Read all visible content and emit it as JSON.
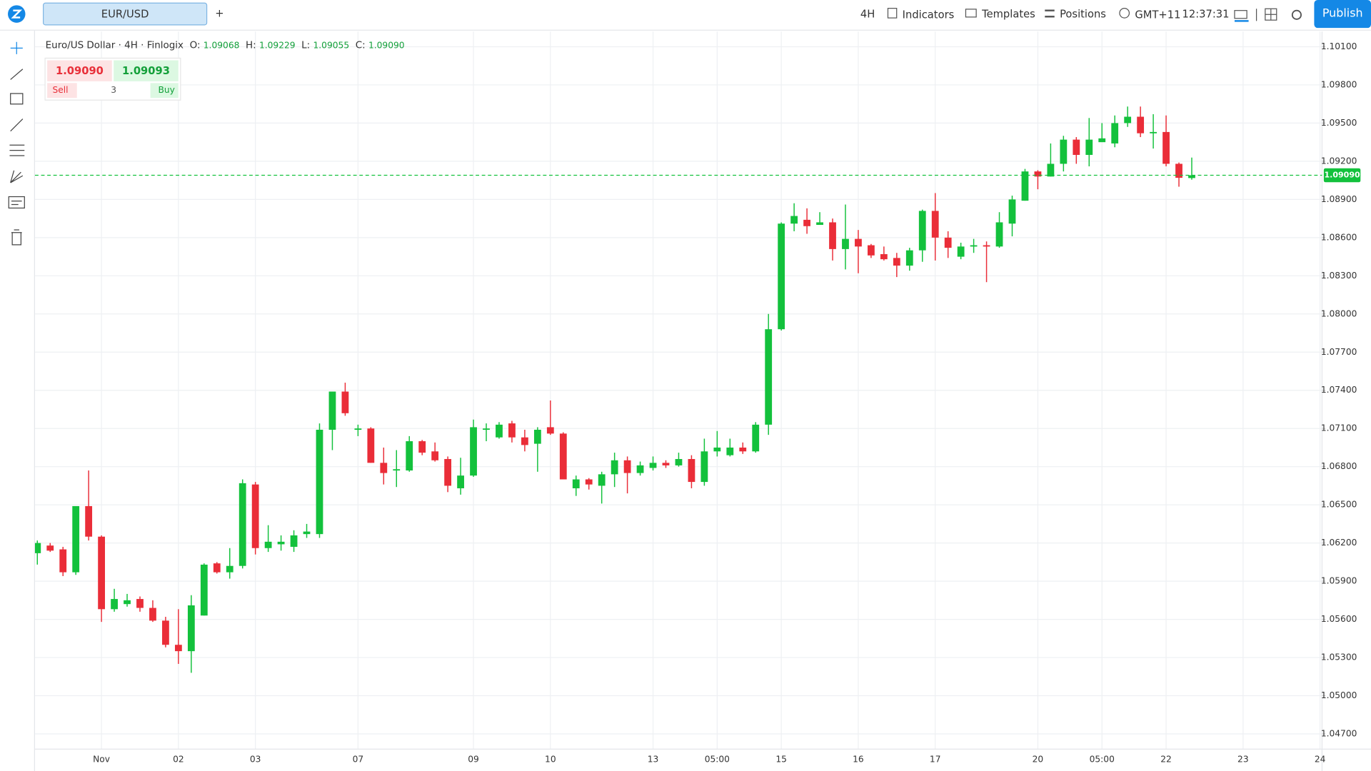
{
  "ui": {
    "symbol_tab": "EUR/USD",
    "add_tab": "+",
    "toolbar": {
      "interval": "4H",
      "indicators": "Indicators",
      "templates": "Templates",
      "positions": "Positions",
      "timezone": "GMT+11",
      "clock": "12:37:31",
      "publish": "Publish"
    },
    "legend": {
      "name": "Euro/US Dollar · 4H · Finlogix",
      "o_key": "O:",
      "o": "1.09068",
      "h_key": "H:",
      "h": "1.09229",
      "l_key": "L:",
      "l": "1.09055",
      "c_key": "C:",
      "c": "1.09090"
    },
    "trade": {
      "sell_price": "1.09090",
      "buy_price": "1.09093",
      "sell": "Sell",
      "qty": "3",
      "buy": "Buy"
    }
  },
  "chart_data": {
    "type": "candlestick",
    "up_color": "#13c13c",
    "down_color": "#ea2d38",
    "grid": true,
    "categories": [
      null,
      null,
      null,
      null,
      null,
      "Nov",
      null,
      null,
      null,
      null,
      null,
      "02",
      null,
      null,
      null,
      null,
      null,
      "03",
      null,
      null,
      null,
      null,
      null,
      null,
      null,
      "07",
      null,
      null,
      null,
      null,
      null,
      null,
      null,
      null,
      "09",
      null,
      null,
      null,
      null,
      null,
      "10",
      null,
      null,
      null,
      null,
      null,
      null,
      null,
      "13",
      null,
      null,
      null,
      null,
      "05:00",
      null,
      null,
      null,
      null,
      "15",
      null,
      null,
      null,
      null,
      null,
      "16",
      null,
      null,
      null,
      null,
      null,
      "17",
      null,
      null,
      null,
      null,
      null,
      null,
      null,
      "20",
      null,
      null,
      null,
      null,
      "05:00",
      null,
      null,
      null,
      null,
      "22",
      null,
      null,
      null,
      null,
      null,
      "23",
      null,
      null,
      null,
      null,
      null,
      "24"
    ],
    "open": [
      1.0612,
      1.0618,
      1.0615,
      1.0597,
      1.0649,
      1.0625,
      1.0568,
      1.0572,
      1.0576,
      1.0569,
      1.0559,
      1.054,
      1.0535,
      1.0563,
      1.0604,
      1.0597,
      1.0602,
      1.0666,
      1.0616,
      1.0619,
      1.0617,
      1.0627,
      1.0627,
      1.0709,
      1.0739,
      1.0709,
      1.071,
      1.0683,
      1.0677,
      1.0677,
      1.07,
      1.0692,
      1.0686,
      1.0663,
      1.0673,
      1.0709,
      1.0703,
      1.0714,
      1.0703,
      1.0698,
      1.0711,
      1.0706,
      1.0663,
      1.067,
      1.0665,
      1.0674,
      1.0685,
      1.0675,
      1.0679,
      1.0683,
      1.0681,
      1.0686,
      1.0668,
      1.0692,
      1.0689,
      1.0695,
      1.0692,
      1.0713,
      1.0788,
      1.0871,
      1.0874,
      1.087,
      1.0872,
      1.0851,
      1.0859,
      1.0854,
      1.0847,
      1.0844,
      1.0838,
      1.085,
      1.0881,
      1.086,
      1.0845,
      1.0853,
      1.0854,
      1.0853,
      1.0871,
      1.0889,
      1.0912,
      1.0908,
      1.0918,
      1.0937,
      1.0925,
      1.0935,
      1.0934,
      1.095,
      1.0955,
      1.0942,
      1.0943,
      1.0918,
      1.09068,
      null,
      null,
      null,
      null,
      null,
      null,
      null,
      null,
      null,
      null
    ],
    "high": [
      1.0622,
      1.062,
      1.0617,
      1.0649,
      1.0677,
      1.0626,
      1.0584,
      1.058,
      1.0578,
      1.0575,
      1.0562,
      1.0568,
      1.0579,
      1.0604,
      1.0605,
      1.0616,
      1.067,
      1.0668,
      1.0634,
      1.0626,
      1.063,
      1.0635,
      1.0714,
      1.0739,
      1.0746,
      1.0713,
      1.0711,
      1.0695,
      1.0693,
      1.0704,
      1.0701,
      1.0699,
      1.0688,
      1.0687,
      1.0717,
      1.0714,
      1.0715,
      1.0716,
      1.0709,
      1.0711,
      1.0732,
      1.0707,
      1.0673,
      1.0671,
      1.0676,
      1.0691,
      1.0688,
      1.0684,
      1.0688,
      1.0685,
      1.0691,
      1.0689,
      1.0702,
      1.0708,
      1.0702,
      1.0699,
      1.0715,
      1.08,
      1.0872,
      1.0887,
      1.0883,
      1.088,
      1.0875,
      1.0886,
      1.0866,
      1.0855,
      1.0853,
      1.0848,
      1.0852,
      1.0882,
      1.0895,
      1.0865,
      1.0856,
      1.0859,
      1.0857,
      1.088,
      1.0893,
      1.0914,
      1.0913,
      1.0934,
      1.094,
      1.0939,
      1.0954,
      1.095,
      1.0956,
      1.0963,
      1.0963,
      1.0957,
      1.0956,
      1.0919,
      1.09229,
      null,
      null,
      null,
      null,
      null,
      null,
      null,
      null,
      null,
      null
    ],
    "low": [
      1.0603,
      1.0613,
      1.0594,
      1.0595,
      1.0622,
      1.0558,
      1.0566,
      1.057,
      1.0566,
      1.0558,
      1.0538,
      1.0525,
      1.0518,
      1.0563,
      1.0596,
      1.0592,
      1.06,
      1.0611,
      1.0613,
      1.0614,
      1.0613,
      1.0624,
      1.0624,
      1.0693,
      1.072,
      1.0704,
      1.0683,
      1.0666,
      1.0664,
      1.0676,
      1.0689,
      1.0684,
      1.066,
      1.0658,
      1.0672,
      1.07,
      1.0702,
      1.0699,
      1.0692,
      1.0676,
      1.0705,
      1.067,
      1.0657,
      1.0662,
      1.0651,
      1.0664,
      1.0659,
      1.0673,
      1.0677,
      1.0679,
      1.068,
      1.0663,
      1.0665,
      1.0688,
      1.0688,
      1.069,
      1.0691,
      1.0705,
      1.0787,
      1.0865,
      1.0863,
      1.087,
      1.0842,
      1.0835,
      1.0832,
      1.0844,
      1.0842,
      1.0829,
      1.0834,
      1.0841,
      1.0842,
      1.0844,
      1.0843,
      1.0848,
      1.0825,
      1.0852,
      1.0861,
      1.0889,
      1.0898,
      1.0908,
      1.0912,
      1.0918,
      1.0916,
      1.0936,
      1.0931,
      1.0947,
      1.0939,
      1.093,
      1.0916,
      1.09,
      1.09055,
      null,
      null,
      null,
      null,
      null,
      null,
      null,
      null,
      null,
      null
    ],
    "close": [
      1.062,
      1.0614,
      1.0597,
      1.0649,
      1.0625,
      1.0568,
      1.0576,
      1.0575,
      1.0569,
      1.0559,
      1.054,
      1.0535,
      1.0571,
      1.0603,
      1.0597,
      1.0602,
      1.0667,
      1.0616,
      1.0621,
      1.0621,
      1.0626,
      1.0629,
      1.0709,
      1.0739,
      1.0722,
      1.071,
      1.0683,
      1.0675,
      1.0678,
      1.07,
      1.0691,
      1.0685,
      1.0665,
      1.0673,
      1.0711,
      1.071,
      1.0713,
      1.0703,
      1.0697,
      1.0709,
      1.0706,
      1.067,
      1.067,
      1.0666,
      1.0674,
      1.0685,
      1.0675,
      1.0681,
      1.0683,
      1.0681,
      1.0686,
      1.0668,
      1.0692,
      1.0695,
      1.0695,
      1.0692,
      1.0713,
      1.0788,
      1.0871,
      1.0877,
      1.0869,
      1.0872,
      1.0851,
      1.0859,
      1.0853,
      1.0846,
      1.0843,
      1.0838,
      1.085,
      1.0881,
      1.086,
      1.0852,
      1.0853,
      1.0854,
      1.0853,
      1.0872,
      1.089,
      1.0912,
      1.0908,
      1.0918,
      1.0937,
      1.0925,
      1.0937,
      1.0938,
      1.095,
      1.0955,
      1.0942,
      1.0943,
      1.0918,
      1.0907,
      1.0909,
      null,
      null,
      null,
      null,
      null,
      null,
      null,
      null,
      null,
      null
    ],
    "ylim": [
      1.0458,
      1.1022
    ],
    "yticks": [
      {
        "value": 1.101,
        "label": "1.10100"
      },
      {
        "value": 1.098,
        "label": "1.09800"
      },
      {
        "value": 1.095,
        "label": "1.09500"
      },
      {
        "value": 1.092,
        "label": "1.09200"
      },
      {
        "value": 1.089,
        "label": "1.08900"
      },
      {
        "value": 1.086,
        "label": "1.08600"
      },
      {
        "value": 1.083,
        "label": "1.08300"
      },
      {
        "value": 1.08,
        "label": "1.08000"
      },
      {
        "value": 1.077,
        "label": "1.07700"
      },
      {
        "value": 1.074,
        "label": "1.07400"
      },
      {
        "value": 1.071,
        "label": "1.07100"
      },
      {
        "value": 1.068,
        "label": "1.06800"
      },
      {
        "value": 1.065,
        "label": "1.06500"
      },
      {
        "value": 1.062,
        "label": "1.06200"
      },
      {
        "value": 1.059,
        "label": "1.05900"
      },
      {
        "value": 1.056,
        "label": "1.05600"
      },
      {
        "value": 1.053,
        "label": "1.05300"
      },
      {
        "value": 1.05,
        "label": "1.05000"
      },
      {
        "value": 1.047,
        "label": "1.04700"
      }
    ],
    "last_price": {
      "value": 1.0909,
      "label": "1.09090",
      "color": "#13c13c"
    }
  }
}
